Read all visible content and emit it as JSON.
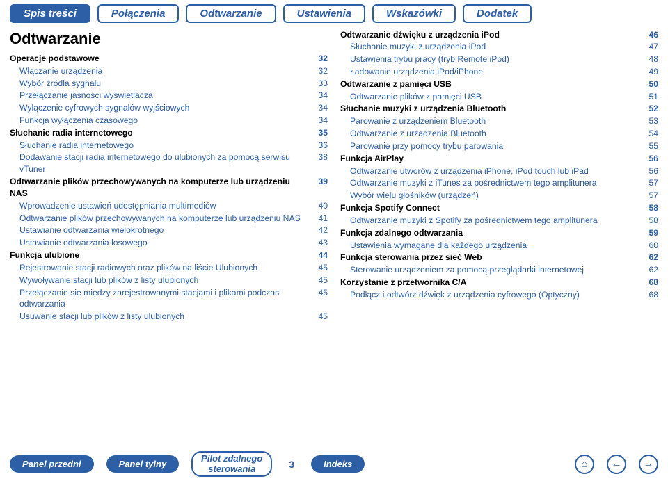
{
  "nav": {
    "tabs": [
      {
        "label": "Spis treści",
        "active": true
      },
      {
        "label": "Połączenia",
        "active": false
      },
      {
        "label": "Odtwarzanie",
        "active": false
      },
      {
        "label": "Ustawienia",
        "active": false
      },
      {
        "label": "Wskazówki",
        "active": false
      },
      {
        "label": "Dodatek",
        "active": false
      }
    ]
  },
  "section_title": "Odtwarzanie",
  "left": [
    {
      "lvl": "lvl0",
      "label": "Operacje podstawowe",
      "pg": "32"
    },
    {
      "lvl": "lvl1",
      "label": "Włączanie urządzenia",
      "pg": "32"
    },
    {
      "lvl": "lvl1",
      "label": "Wybór źródła sygnału",
      "pg": "33"
    },
    {
      "lvl": "lvl1",
      "label": "Przełączanie jasności wyświetlacza",
      "pg": "34"
    },
    {
      "lvl": "lvl1",
      "label": "Wyłączenie cyfrowych sygnałów wyjściowych",
      "pg": "34"
    },
    {
      "lvl": "lvl1",
      "label": "Funkcja wyłączenia czasowego",
      "pg": "34"
    },
    {
      "lvl": "lvl0",
      "label": "Słuchanie radia internetowego",
      "pg": "35"
    },
    {
      "lvl": "lvl1",
      "label": "Słuchanie radia internetowego",
      "pg": "36"
    },
    {
      "lvl": "lvl1",
      "label": "Dodawanie stacji radia internetowego do ulubionych za pomocą serwisu vTuner",
      "pg": "38"
    },
    {
      "lvl": "lvl0",
      "label": "Odtwarzanie plików przechowywanych na komputerze lub urządzeniu NAS",
      "pg": "39"
    },
    {
      "lvl": "lvl1",
      "label": "Wprowadzenie ustawień udostępniania multimediów",
      "pg": "40"
    },
    {
      "lvl": "lvl1",
      "label": "Odtwarzanie plików przechowywanych na komputerze lub urządzeniu NAS",
      "pg": "41"
    },
    {
      "lvl": "lvl1",
      "label": "Ustawianie odtwarzania wielokrotnego",
      "pg": "42"
    },
    {
      "lvl": "lvl1",
      "label": "Ustawianie odtwarzania losowego",
      "pg": "43"
    },
    {
      "lvl": "lvl0",
      "label": "Funkcja ulubione",
      "pg": "44"
    },
    {
      "lvl": "lvl1",
      "label": "Rejestrowanie stacji radiowych oraz plików na liście Ulubionych",
      "pg": "45"
    },
    {
      "lvl": "lvl1",
      "label": "Wywoływanie stacji lub plików z listy ulubionych",
      "pg": "45"
    },
    {
      "lvl": "lvl1",
      "label": "Przełączanie się między zarejestrowanymi stacjami i plikami podczas odtwarzania",
      "pg": "45"
    },
    {
      "lvl": "lvl1",
      "label": "Usuwanie stacji lub plików z listy ulubionych",
      "pg": "45"
    }
  ],
  "right": [
    {
      "lvl": "lvl0",
      "label": "Odtwarzanie dźwięku z urządzenia iPod",
      "pg": "46"
    },
    {
      "lvl": "lvl1",
      "label": "Słuchanie muzyki z urządzenia iPod",
      "pg": "47"
    },
    {
      "lvl": "lvl1",
      "label": "Ustawienia trybu pracy (tryb Remote iPod)",
      "pg": "48"
    },
    {
      "lvl": "lvl1",
      "label": "Ładowanie urządzenia iPod/iPhone",
      "pg": "49"
    },
    {
      "lvl": "lvl0",
      "label": "Odtwarzanie z pamięci USB",
      "pg": "50"
    },
    {
      "lvl": "lvl1",
      "label": "Odtwarzanie plików z pamięci USB",
      "pg": "51"
    },
    {
      "lvl": "lvl0",
      "label": "Słuchanie muzyki z urządzenia Bluetooth",
      "pg": "52"
    },
    {
      "lvl": "lvl1",
      "label": "Parowanie z urządzeniem Bluetooth",
      "pg": "53"
    },
    {
      "lvl": "lvl1",
      "label": "Odtwarzanie z urządzenia Bluetooth",
      "pg": "54"
    },
    {
      "lvl": "lvl1",
      "label": "Parowanie przy pomocy trybu parowania",
      "pg": "55"
    },
    {
      "lvl": "lvl0",
      "label": "Funkcja AirPlay",
      "pg": "56"
    },
    {
      "lvl": "lvl1",
      "label": "Odtwarzanie utworów z urządzenia iPhone, iPod touch lub iPad",
      "pg": "56"
    },
    {
      "lvl": "lvl1",
      "label": "Odtwarzanie muzyki z iTunes za pośrednictwem tego amplitunera",
      "pg": "57"
    },
    {
      "lvl": "lvl1",
      "label": "Wybór wielu głośników (urządzeń)",
      "pg": "57"
    },
    {
      "lvl": "lvl0",
      "label": "Funkcja Spotify Connect",
      "pg": "58"
    },
    {
      "lvl": "lvl1",
      "label": "Odtwarzanie muzyki z Spotify za pośrednictwem tego amplitunera",
      "pg": "58"
    },
    {
      "lvl": "lvl0",
      "label": "Funkcja zdalnego odtwarzania",
      "pg": "59"
    },
    {
      "lvl": "lvl1",
      "label": "Ustawienia wymagane dla każdego urządzenia",
      "pg": "60"
    },
    {
      "lvl": "lvl0",
      "label": "Funkcja sterowania przez sieć Web",
      "pg": "62"
    },
    {
      "lvl": "lvl1",
      "label": "Sterowanie urządzeniem za pomocą przeglądarki internetowej",
      "pg": "62"
    },
    {
      "lvl": "lvl0",
      "label": "Korzystanie z przetwornika C/A",
      "pg": "68"
    },
    {
      "lvl": "lvl1",
      "label": "Podłącz i odtwórz dźwięk z urządzenia cyfrowego (Optyczny)",
      "pg": "68"
    }
  ],
  "bottom": {
    "panel_front": "Panel przedni",
    "panel_rear": "Panel tylny",
    "remote_line1": "Pilot zdalnego",
    "remote_line2": "sterowania",
    "page_number": "3",
    "index": "Indeks"
  },
  "icons": {
    "home": "⌂",
    "prev": "←",
    "next": "→"
  },
  "colors": {
    "accent": "#2c5fa5",
    "background": "#ffffff",
    "text": "#000000"
  }
}
